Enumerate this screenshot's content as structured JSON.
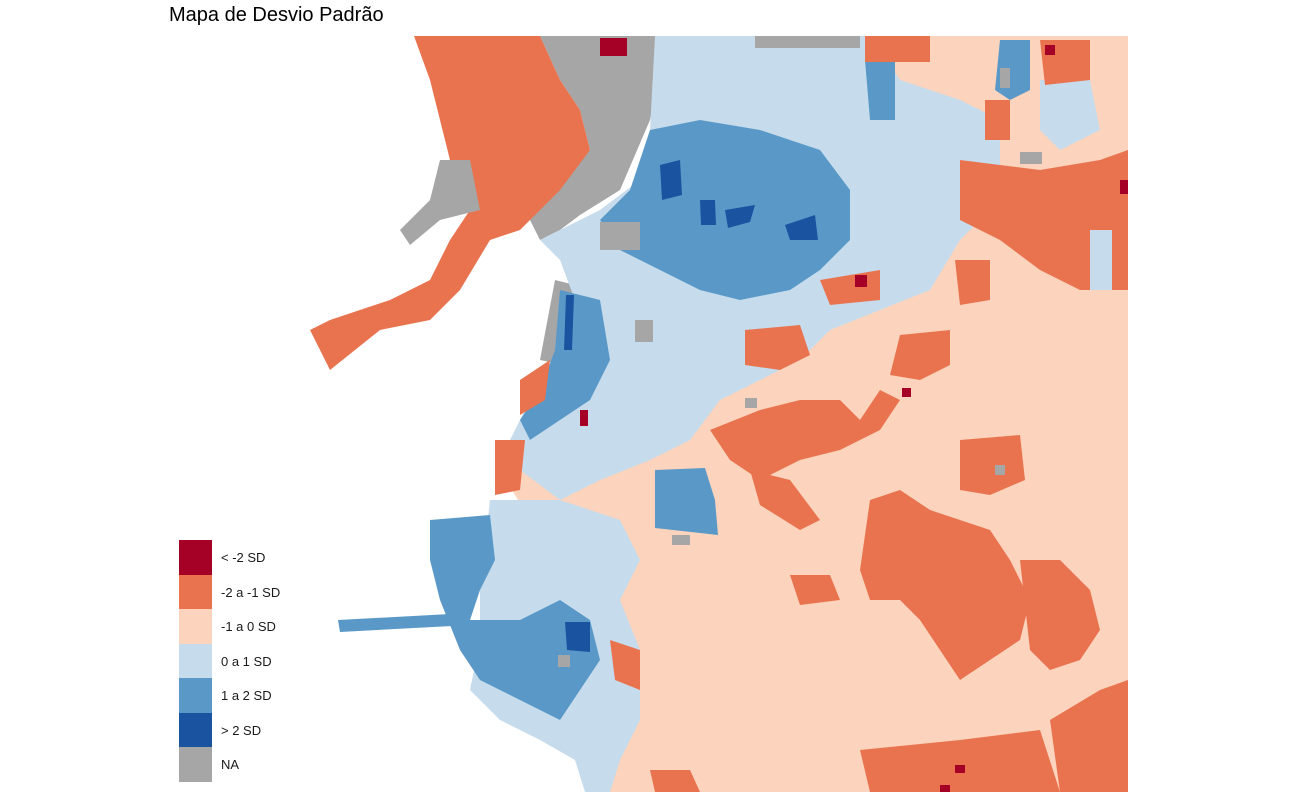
{
  "title": "Mapa de Desvio Padrão",
  "colors": {
    "lt_m2": "#a50026",
    "m2_m1": "#e9734f",
    "m1_0": "#fcd3bc",
    "0_1": "#c6dcec",
    "1_2": "#5a99c7",
    "gt_2": "#1a53a0",
    "na": "#a6a6a6"
  },
  "legend": [
    {
      "key": "lt_m2",
      "label": "< -2 SD",
      "color": "#a50026"
    },
    {
      "key": "m2_m1",
      "label": "-2 a -1 SD",
      "color": "#e9734f"
    },
    {
      "key": "m1_0",
      "label": "-1 a 0 SD",
      "color": "#fcd3bc"
    },
    {
      "key": "0_1",
      "label": "0 a 1 SD",
      "color": "#c6dcec"
    },
    {
      "key": "1_2",
      "label": "1 a 2 SD",
      "color": "#5a99c7"
    },
    {
      "key": "gt_2",
      "label": "> 2 SD",
      "color": "#1a53a0"
    },
    {
      "key": "na",
      "label": "NA",
      "color": "#a6a6a6"
    }
  ]
}
